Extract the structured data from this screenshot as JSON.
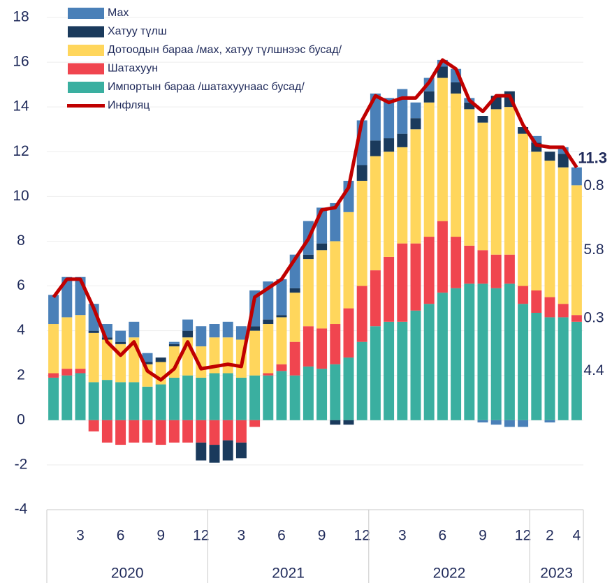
{
  "chart_data": {
    "type": "bar",
    "categories": [
      null,
      null,
      "3",
      null,
      null,
      "6",
      null,
      null,
      "9",
      null,
      null,
      "12",
      null,
      null,
      "3",
      null,
      null,
      "6",
      null,
      null,
      "9",
      null,
      null,
      "12",
      null,
      null,
      "3",
      null,
      null,
      "6",
      null,
      null,
      "9",
      null,
      null,
      "12",
      null,
      "2",
      null,
      "4"
    ],
    "years": [
      "2020",
      "2021",
      "2022",
      "2023"
    ],
    "ylim": [
      -4,
      18
    ],
    "yticks": [
      -4,
      -2,
      0,
      2,
      4,
      6,
      8,
      10,
      12,
      14,
      16,
      18
    ],
    "grid": true,
    "series": [
      {
        "name": "Импортын бараа /шатахуунаас бусад/",
        "color": "#3aafa0",
        "end_label": true,
        "values": [
          1.9,
          2.0,
          2.1,
          1.7,
          1.8,
          1.7,
          1.7,
          1.5,
          1.6,
          1.9,
          2.0,
          1.9,
          2.1,
          2.1,
          1.9,
          2.0,
          2.0,
          2.2,
          2.0,
          2.4,
          2.3,
          2.5,
          2.8,
          3.5,
          4.2,
          4.4,
          4.4,
          4.9,
          5.2,
          5.7,
          5.9,
          6.1,
          6.1,
          5.9,
          6.1,
          5.2,
          4.8,
          4.6,
          4.6,
          4.4
        ]
      },
      {
        "name": "Шатахуун",
        "color": "#f0454f",
        "end_label": true,
        "values": [
          0.2,
          0.3,
          0.2,
          -0.5,
          -1.0,
          -1.1,
          -1.0,
          -1.0,
          -1.1,
          -1.0,
          -1.0,
          -1.0,
          -1.1,
          -0.9,
          -1.0,
          -0.3,
          0.1,
          0.3,
          1.5,
          1.8,
          1.8,
          1.8,
          2.2,
          2.5,
          2.5,
          2.9,
          3.5,
          3.0,
          3.0,
          3.2,
          2.3,
          1.7,
          1.5,
          1.5,
          1.3,
          0.8,
          1.0,
          0.9,
          0.6,
          0.3
        ]
      },
      {
        "name": "Дотоодын бараа /мах, хатуу түлшнээс бусад/",
        "color": "#ffd65c",
        "end_label": true,
        "values": [
          2.2,
          2.3,
          2.4,
          2.2,
          1.8,
          1.7,
          2.0,
          1.0,
          1.0,
          1.4,
          1.7,
          1.4,
          1.6,
          1.6,
          1.7,
          2.0,
          2.2,
          2.1,
          2.2,
          3.0,
          3.5,
          3.7,
          4.3,
          4.7,
          5.1,
          4.7,
          4.3,
          5.1,
          6.0,
          6.4,
          6.4,
          6.1,
          5.7,
          6.5,
          6.6,
          6.8,
          6.2,
          6.1,
          6.1,
          5.8
        ]
      },
      {
        "name": "Хатуу түлш",
        "color": "#1a3a5c",
        "values": [
          0,
          0,
          0,
          0.1,
          0.1,
          0.1,
          0,
          0.1,
          0.2,
          0.1,
          0.3,
          -0.8,
          -0.8,
          -0.9,
          -0.7,
          0.2,
          0.2,
          0.1,
          0.2,
          0.2,
          0.3,
          -0.2,
          -0.2,
          0.7,
          0.7,
          0.6,
          0.6,
          0.5,
          0.5,
          0.5,
          0.5,
          0.3,
          0.3,
          0.6,
          0.7,
          0.3,
          0.4,
          0.4,
          0.6,
          0
        ]
      },
      {
        "name": "Мах",
        "color": "#4a80b8",
        "end_label": true,
        "values": [
          1.3,
          1.8,
          1.7,
          1.2,
          0.6,
          0.5,
          0.7,
          0.4,
          0,
          0.1,
          0.5,
          0.9,
          0.6,
          0.7,
          0.6,
          1.6,
          1.7,
          1.6,
          1.5,
          1.5,
          1.6,
          1.7,
          1.4,
          2.0,
          2.1,
          1.8,
          2.0,
          0.7,
          0.6,
          0.3,
          0.6,
          0.2,
          -0.1,
          -0.2,
          -0.3,
          -0.3,
          0.3,
          -0.1,
          0.3,
          0.8
        ]
      },
      {
        "name": "Инфляц",
        "color": "#c00000",
        "type": "line",
        "end_label": true,
        "values": [
          5.5,
          6.3,
          6.3,
          5.0,
          3.5,
          2.9,
          3.5,
          2.2,
          1.8,
          2.3,
          3.5,
          2.3,
          2.4,
          2.5,
          2.4,
          5.5,
          5.9,
          6.3,
          7.2,
          8.1,
          9.4,
          9.5,
          10.4,
          13.4,
          14.5,
          14.2,
          14.4,
          14.4,
          15.1,
          16.1,
          15.7,
          14.3,
          13.8,
          14.5,
          14.5,
          13.2,
          12.3,
          12.2,
          12.2,
          11.3
        ]
      }
    ]
  }
}
